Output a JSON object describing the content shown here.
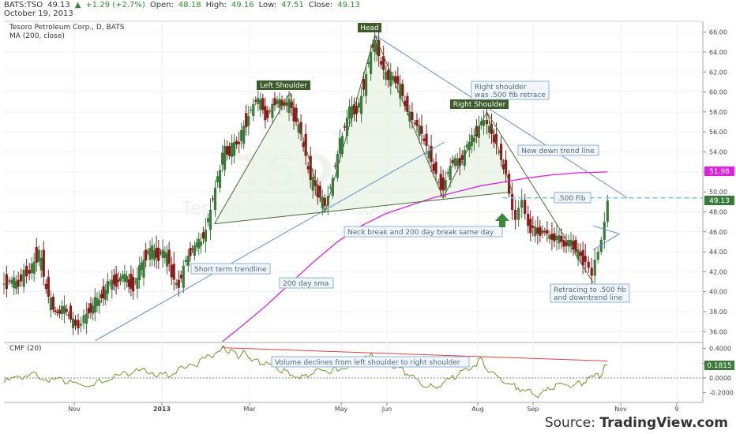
{
  "header": {
    "symbol": "BATS:TSO",
    "last": "49.13",
    "change": "+1.29 (+2.7%)",
    "open_label": "Open:",
    "open": "48.18",
    "high_label": "High:",
    "high": "49.16",
    "low_label": "Low:",
    "low": "47.51",
    "close_label": "Close:",
    "close": "49.13",
    "date": "October 19, 2013"
  },
  "main_pane": {
    "title": "Tesoro Petroleum Corp., D, BATS",
    "indicator": "MA (200, close)",
    "watermark": "TSO",
    "watermark_sub": "Tesoro Petroleum Corp."
  },
  "cmf_pane": {
    "title": "CMF (20)"
  },
  "source": {
    "prefix": "Source: ",
    "brand": "TradingView.com"
  },
  "colors": {
    "up_candle": "#3a7a3a",
    "down_candle": "#8b1a1a",
    "ma_line": "#e020e0",
    "trend_line": "#5b8fd6",
    "pattern_line": "#4a6a3a",
    "fib_line": "#7bc4d6",
    "cmf_line": "#6a9a2a",
    "cmf_trend": "#e04040",
    "label_bg": "#3c5a2a"
  },
  "chart_data": {
    "type": "candlestick",
    "period": "daily",
    "x_ticks": [
      "Nov",
      "2013",
      "Mar",
      "May",
      "Jun",
      "Aug",
      "Sep",
      "Nov",
      "9"
    ],
    "y_ticks": [
      36,
      38,
      40,
      42,
      44,
      46,
      48,
      50,
      52,
      54,
      56,
      58,
      60,
      62,
      64,
      66
    ],
    "ylim": [
      35.0,
      67.0
    ],
    "price_path": [
      {
        "x": 0,
        "y": 40.8
      },
      {
        "x": 10,
        "y": 41.2
      },
      {
        "x": 18,
        "y": 40.5
      },
      {
        "x": 25,
        "y": 42.2
      },
      {
        "x": 32,
        "y": 41.8
      },
      {
        "x": 38,
        "y": 43.0
      },
      {
        "x": 44,
        "y": 44.2
      },
      {
        "x": 50,
        "y": 41.5
      },
      {
        "x": 56,
        "y": 39.5
      },
      {
        "x": 62,
        "y": 38.2
      },
      {
        "x": 70,
        "y": 37.8
      },
      {
        "x": 76,
        "y": 38.6
      },
      {
        "x": 84,
        "y": 37.2
      },
      {
        "x": 90,
        "y": 36.6
      },
      {
        "x": 97,
        "y": 36.8
      },
      {
        "x": 104,
        "y": 37.8
      },
      {
        "x": 112,
        "y": 38.6
      },
      {
        "x": 120,
        "y": 39.2
      },
      {
        "x": 128,
        "y": 40.2
      },
      {
        "x": 136,
        "y": 41.2
      },
      {
        "x": 144,
        "y": 41.0
      },
      {
        "x": 152,
        "y": 41.8
      },
      {
        "x": 160,
        "y": 40.3
      },
      {
        "x": 168,
        "y": 41.4
      },
      {
        "x": 176,
        "y": 43.2
      },
      {
        "x": 184,
        "y": 44.4
      },
      {
        "x": 192,
        "y": 43.4
      },
      {
        "x": 200,
        "y": 44.2
      },
      {
        "x": 208,
        "y": 42.8
      },
      {
        "x": 214,
        "y": 41.2
      },
      {
        "x": 220,
        "y": 40.4
      },
      {
        "x": 226,
        "y": 42.6
      },
      {
        "x": 232,
        "y": 43.6
      },
      {
        "x": 240,
        "y": 44.6
      },
      {
        "x": 248,
        "y": 45.0
      },
      {
        "x": 254,
        "y": 46.2
      },
      {
        "x": 260,
        "y": 48.2
      },
      {
        "x": 266,
        "y": 50.4
      },
      {
        "x": 272,
        "y": 52.2
      },
      {
        "x": 278,
        "y": 54.6
      },
      {
        "x": 284,
        "y": 53.6
      },
      {
        "x": 290,
        "y": 55.0
      },
      {
        "x": 296,
        "y": 54.8
      },
      {
        "x": 302,
        "y": 56.6
      },
      {
        "x": 308,
        "y": 57.6
      },
      {
        "x": 314,
        "y": 58.8
      },
      {
        "x": 320,
        "y": 59.4
      },
      {
        "x": 326,
        "y": 58.2
      },
      {
        "x": 332,
        "y": 57.4
      },
      {
        "x": 338,
        "y": 58.8
      },
      {
        "x": 344,
        "y": 59.2
      },
      {
        "x": 350,
        "y": 58.6
      },
      {
        "x": 356,
        "y": 59.0
      },
      {
        "x": 362,
        "y": 58.4
      },
      {
        "x": 368,
        "y": 57.0
      },
      {
        "x": 374,
        "y": 55.8
      },
      {
        "x": 380,
        "y": 53.6
      },
      {
        "x": 386,
        "y": 51.2
      },
      {
        "x": 392,
        "y": 50.6
      },
      {
        "x": 398,
        "y": 49.4
      },
      {
        "x": 404,
        "y": 48.6
      },
      {
        "x": 408,
        "y": 49.6
      },
      {
        "x": 414,
        "y": 51.4
      },
      {
        "x": 420,
        "y": 53.8
      },
      {
        "x": 426,
        "y": 55.6
      },
      {
        "x": 432,
        "y": 57.4
      },
      {
        "x": 438,
        "y": 58.6
      },
      {
        "x": 444,
        "y": 57.8
      },
      {
        "x": 450,
        "y": 59.6
      },
      {
        "x": 456,
        "y": 61.8
      },
      {
        "x": 462,
        "y": 64.0
      },
      {
        "x": 467,
        "y": 65.2
      },
      {
        "x": 472,
        "y": 63.6
      },
      {
        "x": 478,
        "y": 62.2
      },
      {
        "x": 484,
        "y": 61.2
      },
      {
        "x": 490,
        "y": 61.6
      },
      {
        "x": 496,
        "y": 60.8
      },
      {
        "x": 502,
        "y": 59.6
      },
      {
        "x": 508,
        "y": 58.0
      },
      {
        "x": 514,
        "y": 57.2
      },
      {
        "x": 520,
        "y": 56.6
      },
      {
        "x": 526,
        "y": 55.8
      },
      {
        "x": 532,
        "y": 54.6
      },
      {
        "x": 538,
        "y": 53.0
      },
      {
        "x": 544,
        "y": 51.8
      },
      {
        "x": 550,
        "y": 50.2
      },
      {
        "x": 556,
        "y": 51.2
      },
      {
        "x": 562,
        "y": 52.6
      },
      {
        "x": 568,
        "y": 53.4
      },
      {
        "x": 574,
        "y": 52.6
      },
      {
        "x": 580,
        "y": 54.2
      },
      {
        "x": 586,
        "y": 55.0
      },
      {
        "x": 592,
        "y": 55.4
      },
      {
        "x": 598,
        "y": 56.6
      },
      {
        "x": 604,
        "y": 57.2
      },
      {
        "x": 608,
        "y": 56.8
      },
      {
        "x": 614,
        "y": 55.8
      },
      {
        "x": 620,
        "y": 54.8
      },
      {
        "x": 626,
        "y": 53.2
      },
      {
        "x": 632,
        "y": 51.8
      },
      {
        "x": 636,
        "y": 49.8
      },
      {
        "x": 640,
        "y": 48.2
      },
      {
        "x": 644,
        "y": 47.2
      },
      {
        "x": 648,
        "y": 48.4
      },
      {
        "x": 652,
        "y": 49.2
      },
      {
        "x": 656,
        "y": 47.8
      },
      {
        "x": 660,
        "y": 46.6
      },
      {
        "x": 666,
        "y": 46.4
      },
      {
        "x": 672,
        "y": 45.8
      },
      {
        "x": 678,
        "y": 46.2
      },
      {
        "x": 684,
        "y": 45.8
      },
      {
        "x": 690,
        "y": 45.2
      },
      {
        "x": 696,
        "y": 45.6
      },
      {
        "x": 702,
        "y": 45.0
      },
      {
        "x": 708,
        "y": 44.6
      },
      {
        "x": 714,
        "y": 45.2
      },
      {
        "x": 720,
        "y": 44.0
      },
      {
        "x": 726,
        "y": 43.6
      },
      {
        "x": 732,
        "y": 43.0
      },
      {
        "x": 736,
        "y": 42.4
      },
      {
        "x": 740,
        "y": 41.6
      },
      {
        "x": 744,
        "y": 43.2
      },
      {
        "x": 748,
        "y": 44.0
      },
      {
        "x": 752,
        "y": 45.2
      },
      {
        "x": 756,
        "y": 47.0
      },
      {
        "x": 760,
        "y": 49.13
      }
    ],
    "ma200": {
      "name": "MA (200, close)",
      "x": [
        275,
        300,
        330,
        360,
        390,
        420,
        450,
        480,
        510,
        540,
        570,
        600,
        630,
        660,
        690,
        720,
        760
      ],
      "y": [
        35.0,
        36.6,
        38.6,
        40.8,
        43.0,
        45.0,
        46.6,
        47.8,
        48.6,
        49.4,
        50.0,
        50.6,
        51.0,
        51.4,
        51.7,
        51.9,
        52.0
      ]
    },
    "cmf": {
      "name": "CMF (20)",
      "y_ticks": [
        -0.2,
        0.0,
        0.2,
        0.4
      ],
      "ylim": [
        -0.31,
        0.46
      ],
      "last": 0.1815,
      "x": [
        0,
        20,
        40,
        60,
        80,
        100,
        120,
        140,
        160,
        180,
        200,
        220,
        240,
        260,
        275,
        285,
        295,
        305,
        315,
        330,
        345,
        360,
        375,
        390,
        405,
        420,
        435,
        450,
        465,
        480,
        495,
        510,
        525,
        540,
        555,
        570,
        585,
        600,
        615,
        630,
        645,
        660,
        675,
        690,
        705,
        720,
        735,
        750,
        760
      ],
      "y": [
        -0.06,
        0.02,
        0.04,
        -0.02,
        -0.06,
        -0.1,
        -0.04,
        0.02,
        0.08,
        0.1,
        0.04,
        0.1,
        0.18,
        0.3,
        0.4,
        0.36,
        0.3,
        0.34,
        0.24,
        0.2,
        0.12,
        0.06,
        0.02,
        0.06,
        0.1,
        0.12,
        0.18,
        0.24,
        0.3,
        0.22,
        0.14,
        0.04,
        -0.08,
        -0.12,
        -0.06,
        0.02,
        0.12,
        0.24,
        0.06,
        -0.06,
        -0.12,
        -0.18,
        -0.24,
        -0.14,
        -0.08,
        -0.1,
        -0.04,
        0.04,
        0.18
      ]
    }
  },
  "annotations": {
    "head": "Head",
    "left_shoulder": "Left Shoulder",
    "right_shoulder": "Right Shoulder",
    "right_shoulder_note_1": "Right shoulder",
    "right_shoulder_note_2": "was .500 fib retrace",
    "new_downtrend": "New down trend line",
    "fib_500": ".500 Fib",
    "neck_break": "Neck break and 200 day break same day",
    "short_term": "Short term trendline",
    "sma_200": "200 day sma",
    "retracing_1": "Retracing to .500 fib",
    "retracing_2": "and downtrend line",
    "volume_declines": "Volume declines from left shoulder to right shoulder",
    "ma_value": "51.98",
    "last_value": "49.13",
    "cmf_value": "0.1815"
  },
  "pattern_points": {
    "neckline": [
      {
        "x": 265,
        "y": 46.8
      },
      {
        "x": 640,
        "y": 50.0
      }
    ],
    "shoulders_head": [
      {
        "x": 265,
        "y": 46.8
      },
      {
        "x": 360,
        "y": 59.9
      },
      {
        "x": 404,
        "y": 47.9
      },
      {
        "x": 467,
        "y": 65.7
      },
      {
        "x": 553,
        "y": 49.4
      },
      {
        "x": 608,
        "y": 58.0
      },
      {
        "x": 640,
        "y": 50.0
      }
    ],
    "short_trendline": [
      {
        "x": 115,
        "y": 35.1
      },
      {
        "x": 555,
        "y": 55.0
      }
    ],
    "head_downtrend": [
      {
        "x": 467,
        "y": 65.7
      },
      {
        "x": 785,
        "y": 49.4
      }
    ],
    "rs_leg": [
      {
        "x": 608,
        "y": 58.0
      },
      {
        "x": 742,
        "y": 40.9
      }
    ],
    "fib_level": 49.4
  }
}
